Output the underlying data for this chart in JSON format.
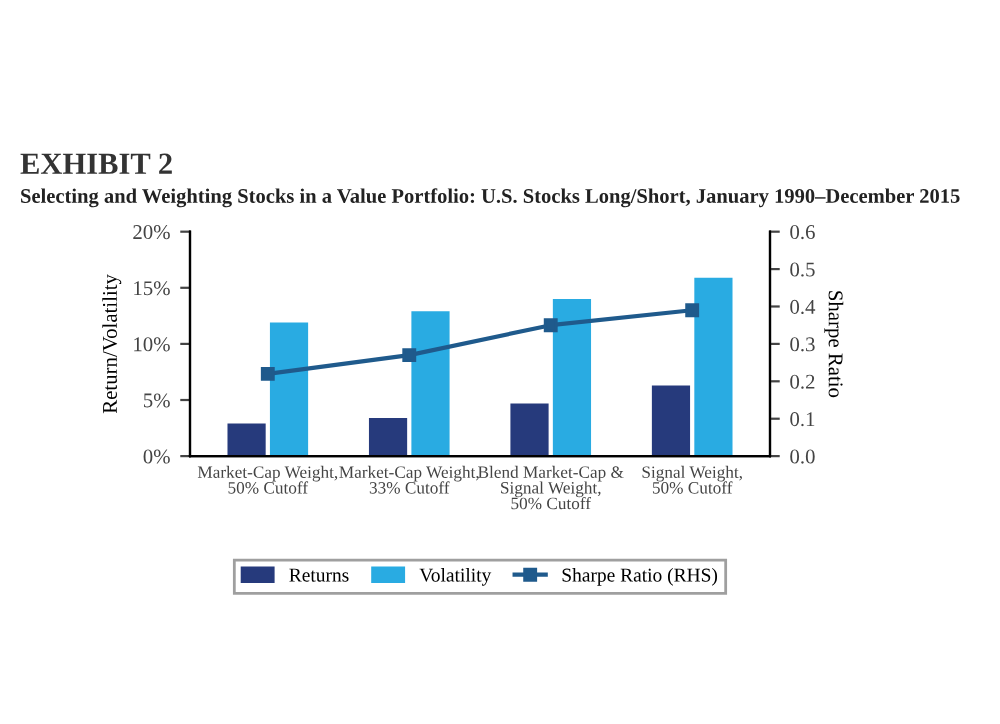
{
  "chart_data": {
    "type": "bar",
    "title": "EXHIBIT 2",
    "subtitle": "Selecting and Weighting Stocks in a Value Portfolio: U.S. Stocks Long/Short, January 1990–December 2015",
    "categories": [
      "Market-Cap Weight,\n50% Cutoff",
      "Market-Cap Weight,\n33% Cutoff",
      "Blend Market-Cap &\nSignal Weight,\n50% Cutoff",
      "Signal Weight,\n50% Cutoff"
    ],
    "series": [
      {
        "name": "Returns",
        "color": "#263a7c",
        "values": [
          2.9,
          3.4,
          4.7,
          6.3
        ]
      },
      {
        "name": "Volatility",
        "color": "#29abe2",
        "values": [
          11.9,
          12.9,
          14.0,
          15.9
        ]
      },
      {
        "name": "Sharpe Ratio (RHS)",
        "type": "line",
        "axis": "y2",
        "color": "#1f5a8c",
        "marker": "square",
        "values": [
          0.22,
          0.27,
          0.35,
          0.39
        ]
      }
    ],
    "ylabel": "Return/Volatility",
    "y2label": "Sharpe Ratio",
    "ylim": [
      0,
      20
    ],
    "yticks": [
      {
        "value": 0,
        "label": "0%"
      },
      {
        "value": 5,
        "label": "5%"
      },
      {
        "value": 10,
        "label": "10%"
      },
      {
        "value": 15,
        "label": "15%"
      },
      {
        "value": 20,
        "label": "20%"
      }
    ],
    "y2lim": [
      0,
      0.6
    ],
    "y2ticks": [
      {
        "value": 0,
        "label": "0.0"
      },
      {
        "value": 0.1,
        "label": "0.1"
      },
      {
        "value": 0.2,
        "label": "0.2"
      },
      {
        "value": 0.3,
        "label": "0.3"
      },
      {
        "value": 0.4,
        "label": "0.4"
      },
      {
        "value": 0.5,
        "label": "0.5"
      },
      {
        "value": 0.6,
        "label": "0.6"
      }
    ],
    "legend": "bottom",
    "grid": false
  }
}
